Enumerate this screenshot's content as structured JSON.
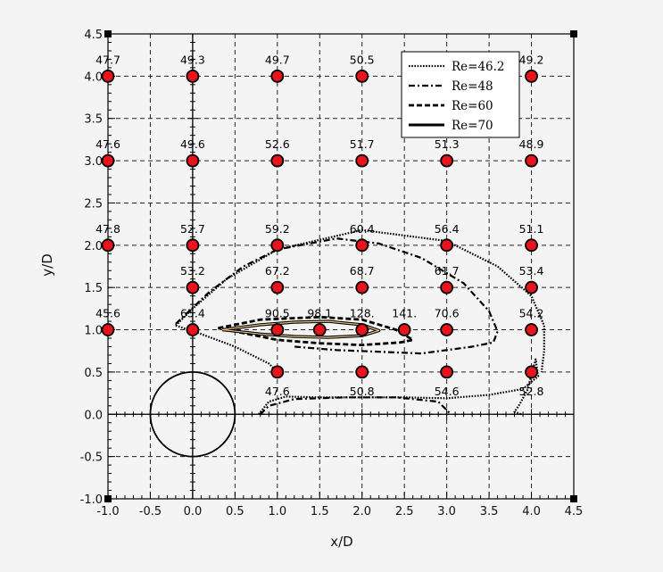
{
  "chart_data": {
    "type": "scatter",
    "title": "",
    "xlabel": "x/D",
    "ylabel": "y/D",
    "xlim": [
      -1.0,
      4.5
    ],
    "ylim": [
      -1.0,
      4.5
    ],
    "grid": true,
    "legend_position": "top-right",
    "x_ticks": [
      "-1.0",
      "-0.5",
      "0.0",
      "0.5",
      "1.0",
      "1.5",
      "2.0",
      "2.5",
      "3.0",
      "3.5",
      "4.0",
      "4.5"
    ],
    "y_ticks": [
      "-1.0",
      "-0.5",
      "0.0",
      "0.5",
      "1.0",
      "1.5",
      "2.0",
      "2.5",
      "3.0",
      "3.5",
      "4.0",
      "4.5"
    ],
    "marker_color": "#e8141b",
    "cylinder": {
      "cx": 0.0,
      "cy": 0.0,
      "r": 0.5
    },
    "points": [
      {
        "x": -1.0,
        "y": 4.0,
        "label": "47.7"
      },
      {
        "x": 0.0,
        "y": 4.0,
        "label": "49.3"
      },
      {
        "x": 1.0,
        "y": 4.0,
        "label": "49.7"
      },
      {
        "x": 2.0,
        "y": 4.0,
        "label": "50.5"
      },
      {
        "x": 4.0,
        "y": 4.0,
        "label": "49.2"
      },
      {
        "x": -1.0,
        "y": 3.0,
        "label": "47.6"
      },
      {
        "x": 0.0,
        "y": 3.0,
        "label": "49.6"
      },
      {
        "x": 1.0,
        "y": 3.0,
        "label": "52.6"
      },
      {
        "x": 2.0,
        "y": 3.0,
        "label": "51.7"
      },
      {
        "x": 3.0,
        "y": 3.0,
        "label": "51.3"
      },
      {
        "x": 4.0,
        "y": 3.0,
        "label": "48.9"
      },
      {
        "x": -1.0,
        "y": 2.0,
        "label": "47.8"
      },
      {
        "x": 0.0,
        "y": 2.0,
        "label": "52.7"
      },
      {
        "x": 1.0,
        "y": 2.0,
        "label": "59.2"
      },
      {
        "x": 2.0,
        "y": 2.0,
        "label": "60.4"
      },
      {
        "x": 3.0,
        "y": 2.0,
        "label": "56.4"
      },
      {
        "x": 4.0,
        "y": 2.0,
        "label": "51.1"
      },
      {
        "x": 0.0,
        "y": 1.5,
        "label": "53.2"
      },
      {
        "x": 1.0,
        "y": 1.5,
        "label": "67.2"
      },
      {
        "x": 2.0,
        "y": 1.5,
        "label": "68.7"
      },
      {
        "x": 3.0,
        "y": 1.5,
        "label": "61.7"
      },
      {
        "x": 4.0,
        "y": 1.5,
        "label": "53.4"
      },
      {
        "x": -1.0,
        "y": 1.0,
        "label": "45.6"
      },
      {
        "x": 0.0,
        "y": 1.0,
        "label": "65.4"
      },
      {
        "x": 1.0,
        "y": 1.0,
        "label": "90.5"
      },
      {
        "x": 1.5,
        "y": 1.0,
        "label": "98.1"
      },
      {
        "x": 2.0,
        "y": 1.0,
        "label": "128."
      },
      {
        "x": 2.5,
        "y": 1.0,
        "label": "141."
      },
      {
        "x": 3.0,
        "y": 1.0,
        "label": "70.6"
      },
      {
        "x": 4.0,
        "y": 1.0,
        "label": "54.2"
      },
      {
        "x": 1.0,
        "y": 0.5,
        "label": "47.6"
      },
      {
        "x": 2.0,
        "y": 0.5,
        "label": "50.8"
      },
      {
        "x": 3.0,
        "y": 0.5,
        "label": "54.6"
      },
      {
        "x": 4.0,
        "y": 0.5,
        "label": "52.8"
      }
    ],
    "series": [
      {
        "name": "Re=46.2",
        "style": "dotted",
        "x": [
          0.78,
          0.9,
          1.1,
          1.5,
          2.0,
          2.5,
          3.0,
          3.5,
          3.9,
          4.08,
          4.05,
          3.95,
          3.85,
          3.8,
          3.88
        ],
        "y": [
          0.0,
          0.15,
          0.21,
          0.2,
          0.2,
          0.2,
          0.19,
          0.23,
          0.3,
          0.45,
          0.65,
          0.28,
          0.1,
          0.03,
          0.0
        ]
      },
      {
        "name": "Re=46.2",
        "style": "dotted",
        "x": [
          -0.2,
          0.0,
          0.4,
          1.0,
          2.0,
          3.0,
          3.6,
          4.0,
          4.15,
          4.15,
          4.12
        ],
        "y": [
          1.05,
          1.25,
          1.6,
          1.95,
          2.18,
          2.05,
          1.75,
          1.4,
          1.05,
          0.75,
          0.5
        ]
      },
      {
        "name": "Re=46.2",
        "style": "dotted",
        "x": [
          -0.2,
          0.1,
          0.5,
          0.9,
          1.0
        ],
        "y": [
          1.05,
          0.95,
          0.8,
          0.6,
          0.5
        ]
      },
      {
        "name": "Re=48",
        "style": "dashdot",
        "x": [
          -0.2,
          0.2,
          0.6,
          1.0,
          1.7,
          2.2,
          2.7,
          3.2,
          3.5,
          3.6,
          3.55,
          3.3,
          2.7,
          2.2,
          1.7,
          1.2
        ],
        "y": [
          1.07,
          1.45,
          1.75,
          1.95,
          2.08,
          2.02,
          1.85,
          1.55,
          1.22,
          0.98,
          0.85,
          0.8,
          0.72,
          0.74,
          0.76,
          0.8
        ]
      },
      {
        "name": "Re=48",
        "style": "dashdot",
        "x": [
          0.8,
          0.9,
          1.2,
          1.8,
          2.4,
          2.9,
          3.05
        ],
        "y": [
          0.0,
          0.1,
          0.18,
          0.2,
          0.2,
          0.15,
          0.0
        ]
      },
      {
        "name": "Re=60",
        "style": "dashed",
        "x": [
          0.3,
          0.8,
          1.5,
          2.0,
          2.4,
          2.6,
          2.45,
          2.0,
          1.5,
          1.0,
          0.6,
          0.3
        ],
        "y": [
          1.02,
          1.12,
          1.15,
          1.12,
          1.0,
          0.88,
          0.85,
          0.82,
          0.84,
          0.88,
          0.96,
          1.02
        ]
      },
      {
        "name": "Re=70",
        "style": "solid",
        "x": [
          0.35,
          0.8,
          1.2,
          1.6,
          2.0,
          2.2,
          2.0,
          1.6,
          1.2,
          0.8,
          0.35
        ],
        "y": [
          1.0,
          1.06,
          1.09,
          1.1,
          1.06,
          0.99,
          0.93,
          0.91,
          0.92,
          0.95,
          1.0
        ]
      }
    ],
    "legend": [
      {
        "label": "Re=46.2",
        "style": "dotted"
      },
      {
        "label": "Re=48",
        "style": "dashdot"
      },
      {
        "label": "Re=60",
        "style": "dashed"
      },
      {
        "label": "Re=70",
        "style": "solid"
      }
    ]
  }
}
